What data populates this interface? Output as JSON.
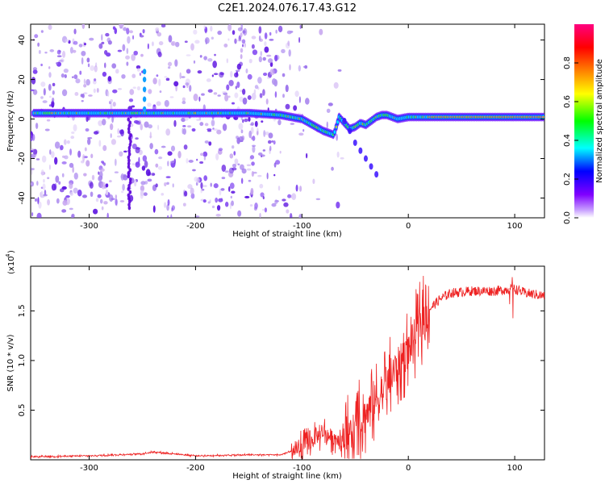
{
  "title": "C2E1.2024.076.17.43.G12",
  "chart_data": [
    {
      "type": "heatmap",
      "xlabel": "Height of straight line (km)",
      "ylabel": "Frequency (Hz)",
      "xlim": [
        -355,
        128
      ],
      "ylim": [
        -50,
        48
      ],
      "x_ticks": [
        -300,
        -200,
        -100,
        0,
        100
      ],
      "x_tick_labels": [
        "-300",
        "-200",
        "-100",
        "0",
        "100"
      ],
      "y_ticks": [
        40,
        20,
        0,
        -20,
        -40
      ],
      "y_tick_labels": [
        "40",
        "20",
        "0",
        "-20",
        "-40"
      ],
      "colorbar": {
        "label": "Normalized spectral amplitude",
        "range": [
          0.0,
          1.0
        ],
        "ticks": [
          0.0,
          0.2,
          0.4,
          0.6,
          0.8
        ],
        "tick_labels": [
          "0.0",
          "0.2",
          "0.4",
          "0.6",
          "0.8"
        ],
        "colormap": [
          "#ffffff",
          "#8000ff",
          "#0000ff",
          "#00ffff",
          "#00ff00",
          "#ffff00",
          "#ff8000",
          "#ff0000",
          "#ff0080"
        ]
      },
      "ridge": {
        "x": [
          -350,
          -300,
          -250,
          -200,
          -150,
          -120,
          -100,
          -90,
          -80,
          -70,
          -65,
          -60,
          -55,
          -50,
          -45,
          -40,
          -35,
          -30,
          -25,
          -20,
          -10,
          0,
          20,
          50,
          100,
          128
        ],
        "frequency": [
          3,
          3,
          3,
          3,
          3,
          2,
          0,
          -3,
          -6,
          -8,
          1,
          -2,
          -5,
          -4,
          -2,
          -3,
          -1,
          1,
          2,
          2,
          0,
          1,
          1,
          1,
          1,
          1
        ]
      },
      "branch": {
        "x": [
          -60,
          -55,
          -50,
          -45,
          -40,
          -35,
          -30
        ],
        "frequency": [
          -1,
          -6,
          -12,
          -16,
          -20,
          -24,
          -28
        ]
      },
      "spike": {
        "x": -248,
        "frequency": [
          5,
          10,
          15,
          20,
          24
        ]
      },
      "streak": {
        "x": -262,
        "frequency_range": [
          -45,
          2
        ]
      }
    },
    {
      "type": "line",
      "xlabel": "Height of straight line (km)",
      "ylabel": "SNR (10 * v/v)",
      "y_multiplier": "(x10",
      "y_multiplier_exp": "4",
      "xlim": [
        -355,
        128
      ],
      "ylim": [
        0,
        1.95
      ],
      "x_ticks": [
        -300,
        -200,
        -100,
        0,
        100
      ],
      "x_tick_labels": [
        "-300",
        "-200",
        "-100",
        "0",
        "100"
      ],
      "y_ticks": [
        0.5,
        1.0,
        1.5
      ],
      "y_tick_labels": [
        "0.5",
        "1.0",
        "1.5"
      ],
      "color": "#ee2222",
      "x": [
        -355,
        -300,
        -250,
        -240,
        -200,
        -150,
        -120,
        -100,
        -90,
        -80,
        -70,
        -60,
        -50,
        -40,
        -30,
        -20,
        -10,
        0,
        10,
        20,
        30,
        40,
        60,
        80,
        100,
        110,
        128
      ],
      "snr": [
        0.03,
        0.04,
        0.06,
        0.08,
        0.04,
        0.05,
        0.05,
        0.12,
        0.2,
        0.28,
        0.22,
        0.2,
        0.3,
        0.45,
        0.6,
        0.75,
        0.95,
        1.1,
        1.35,
        1.52,
        1.62,
        1.68,
        1.7,
        1.7,
        1.72,
        1.68,
        1.65
      ]
    }
  ]
}
